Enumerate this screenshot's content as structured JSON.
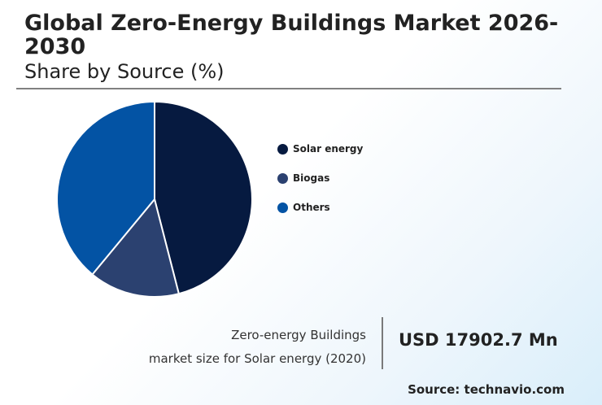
{
  "header": {
    "title": "Global Zero-Energy Buildings Market 2026-2030",
    "subtitle": "Share by Source (%)"
  },
  "chart_data": {
    "type": "pie",
    "categories": [
      "Solar energy",
      "Biogas",
      "Others"
    ],
    "values": [
      46,
      15,
      39
    ],
    "colors": [
      "#061a40",
      "#2b4170",
      "#0353a4"
    ],
    "legend_position": "right"
  },
  "market_size": {
    "label_line1": "Zero-energy Buildings",
    "label_line2": "market size for Solar energy (2020)",
    "value": "USD 17902.7 Mn"
  },
  "footer": {
    "source": "Source: technavio.com"
  }
}
